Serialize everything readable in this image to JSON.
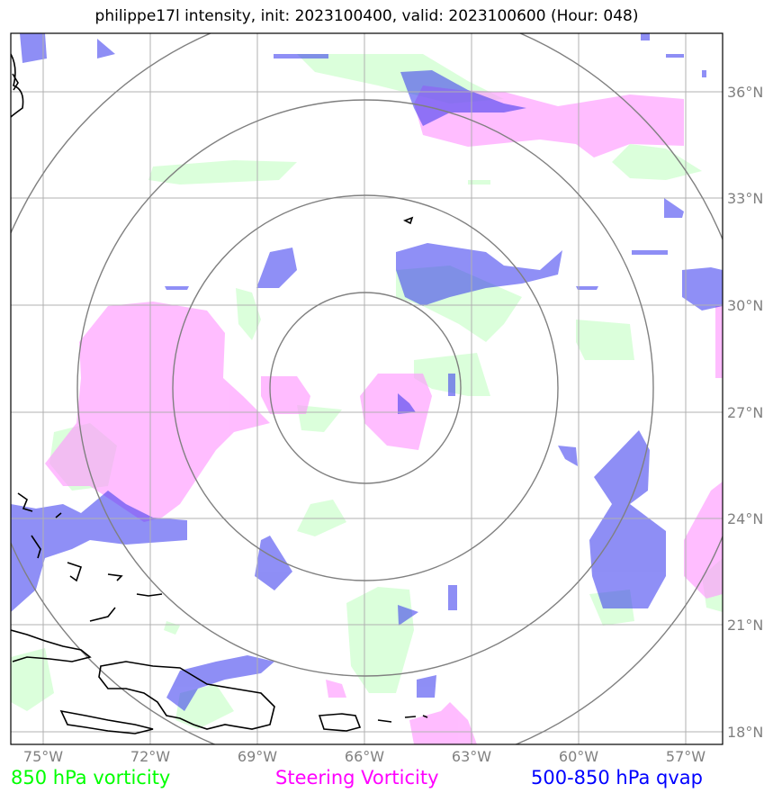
{
  "title": "philippe17l intensity, init: 2023100400, valid: 2023100600 (Hour: 048)",
  "lon_ticks": [
    "75°W",
    "72°W",
    "69°W",
    "66°W",
    "63°W",
    "60°W",
    "57°W"
  ],
  "lat_ticks": [
    "36°N",
    "33°N",
    "30°N",
    "27°N",
    "24°N",
    "21°N",
    "18°N"
  ],
  "legend": {
    "green": "850 hPa vorticity",
    "magenta": "Steering Vorticity",
    "blue": "500-850 hPa qvap"
  },
  "colors": {
    "green_fill": "#ccffcc",
    "magenta_fill": "#ff99ff",
    "blue_fill": "#3333ee",
    "range_rings": "#808080",
    "gridlines": "#b0b0b0",
    "coastline": "#000000"
  },
  "map": {
    "center": "66°W 27.8°N",
    "range_rings_deg": [
      3,
      6,
      9,
      12
    ]
  }
}
